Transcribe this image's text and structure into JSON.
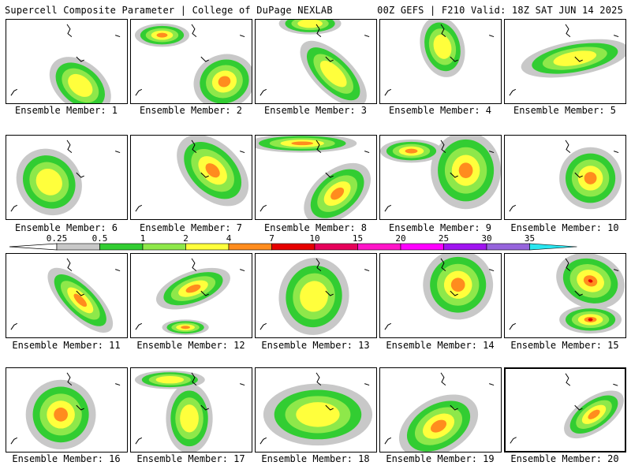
{
  "header": {
    "left": "Supercell Composite Parameter | College of DuPage NEXLAB",
    "right": "00Z GEFS | F210 Valid: 18Z SAT JUN 14 2025"
  },
  "legend": {
    "ticks": [
      "0.25",
      "0.5",
      "1",
      "2",
      "4",
      "7",
      "10",
      "15",
      "20",
      "25",
      "30",
      "35"
    ],
    "colors": [
      "#c8c8c8",
      "#32cd32",
      "#8ee84a",
      "#ffff3c",
      "#ff8c1e",
      "#e60000",
      "#e6005a",
      "#ff14c8",
      "#ff00ff",
      "#a014f0",
      "#9664dc",
      "#28e6f0"
    ]
  },
  "panels": [
    {
      "label": "Ensemble Member: 1"
    },
    {
      "label": "Ensemble Member: 2"
    },
    {
      "label": "Ensemble Member: 3"
    },
    {
      "label": "Ensemble Member: 4"
    },
    {
      "label": "Ensemble Member: 5"
    },
    {
      "label": "Ensemble Member: 6"
    },
    {
      "label": "Ensemble Member: 7"
    },
    {
      "label": "Ensemble Member: 8"
    },
    {
      "label": "Ensemble Member: 9"
    },
    {
      "label": "Ensemble Member: 10"
    },
    {
      "label": "Ensemble Member: 11"
    },
    {
      "label": "Ensemble Member: 12"
    },
    {
      "label": "Ensemble Member: 13"
    },
    {
      "label": "Ensemble Member: 14"
    },
    {
      "label": "Ensemble Member: 15"
    },
    {
      "label": "Ensemble Member: 16"
    },
    {
      "label": "Ensemble Member: 17"
    },
    {
      "label": "Ensemble Member: 18"
    },
    {
      "label": "Ensemble Member: 19"
    },
    {
      "label": "Ensemble Member: 20",
      "selected": true
    }
  ]
}
